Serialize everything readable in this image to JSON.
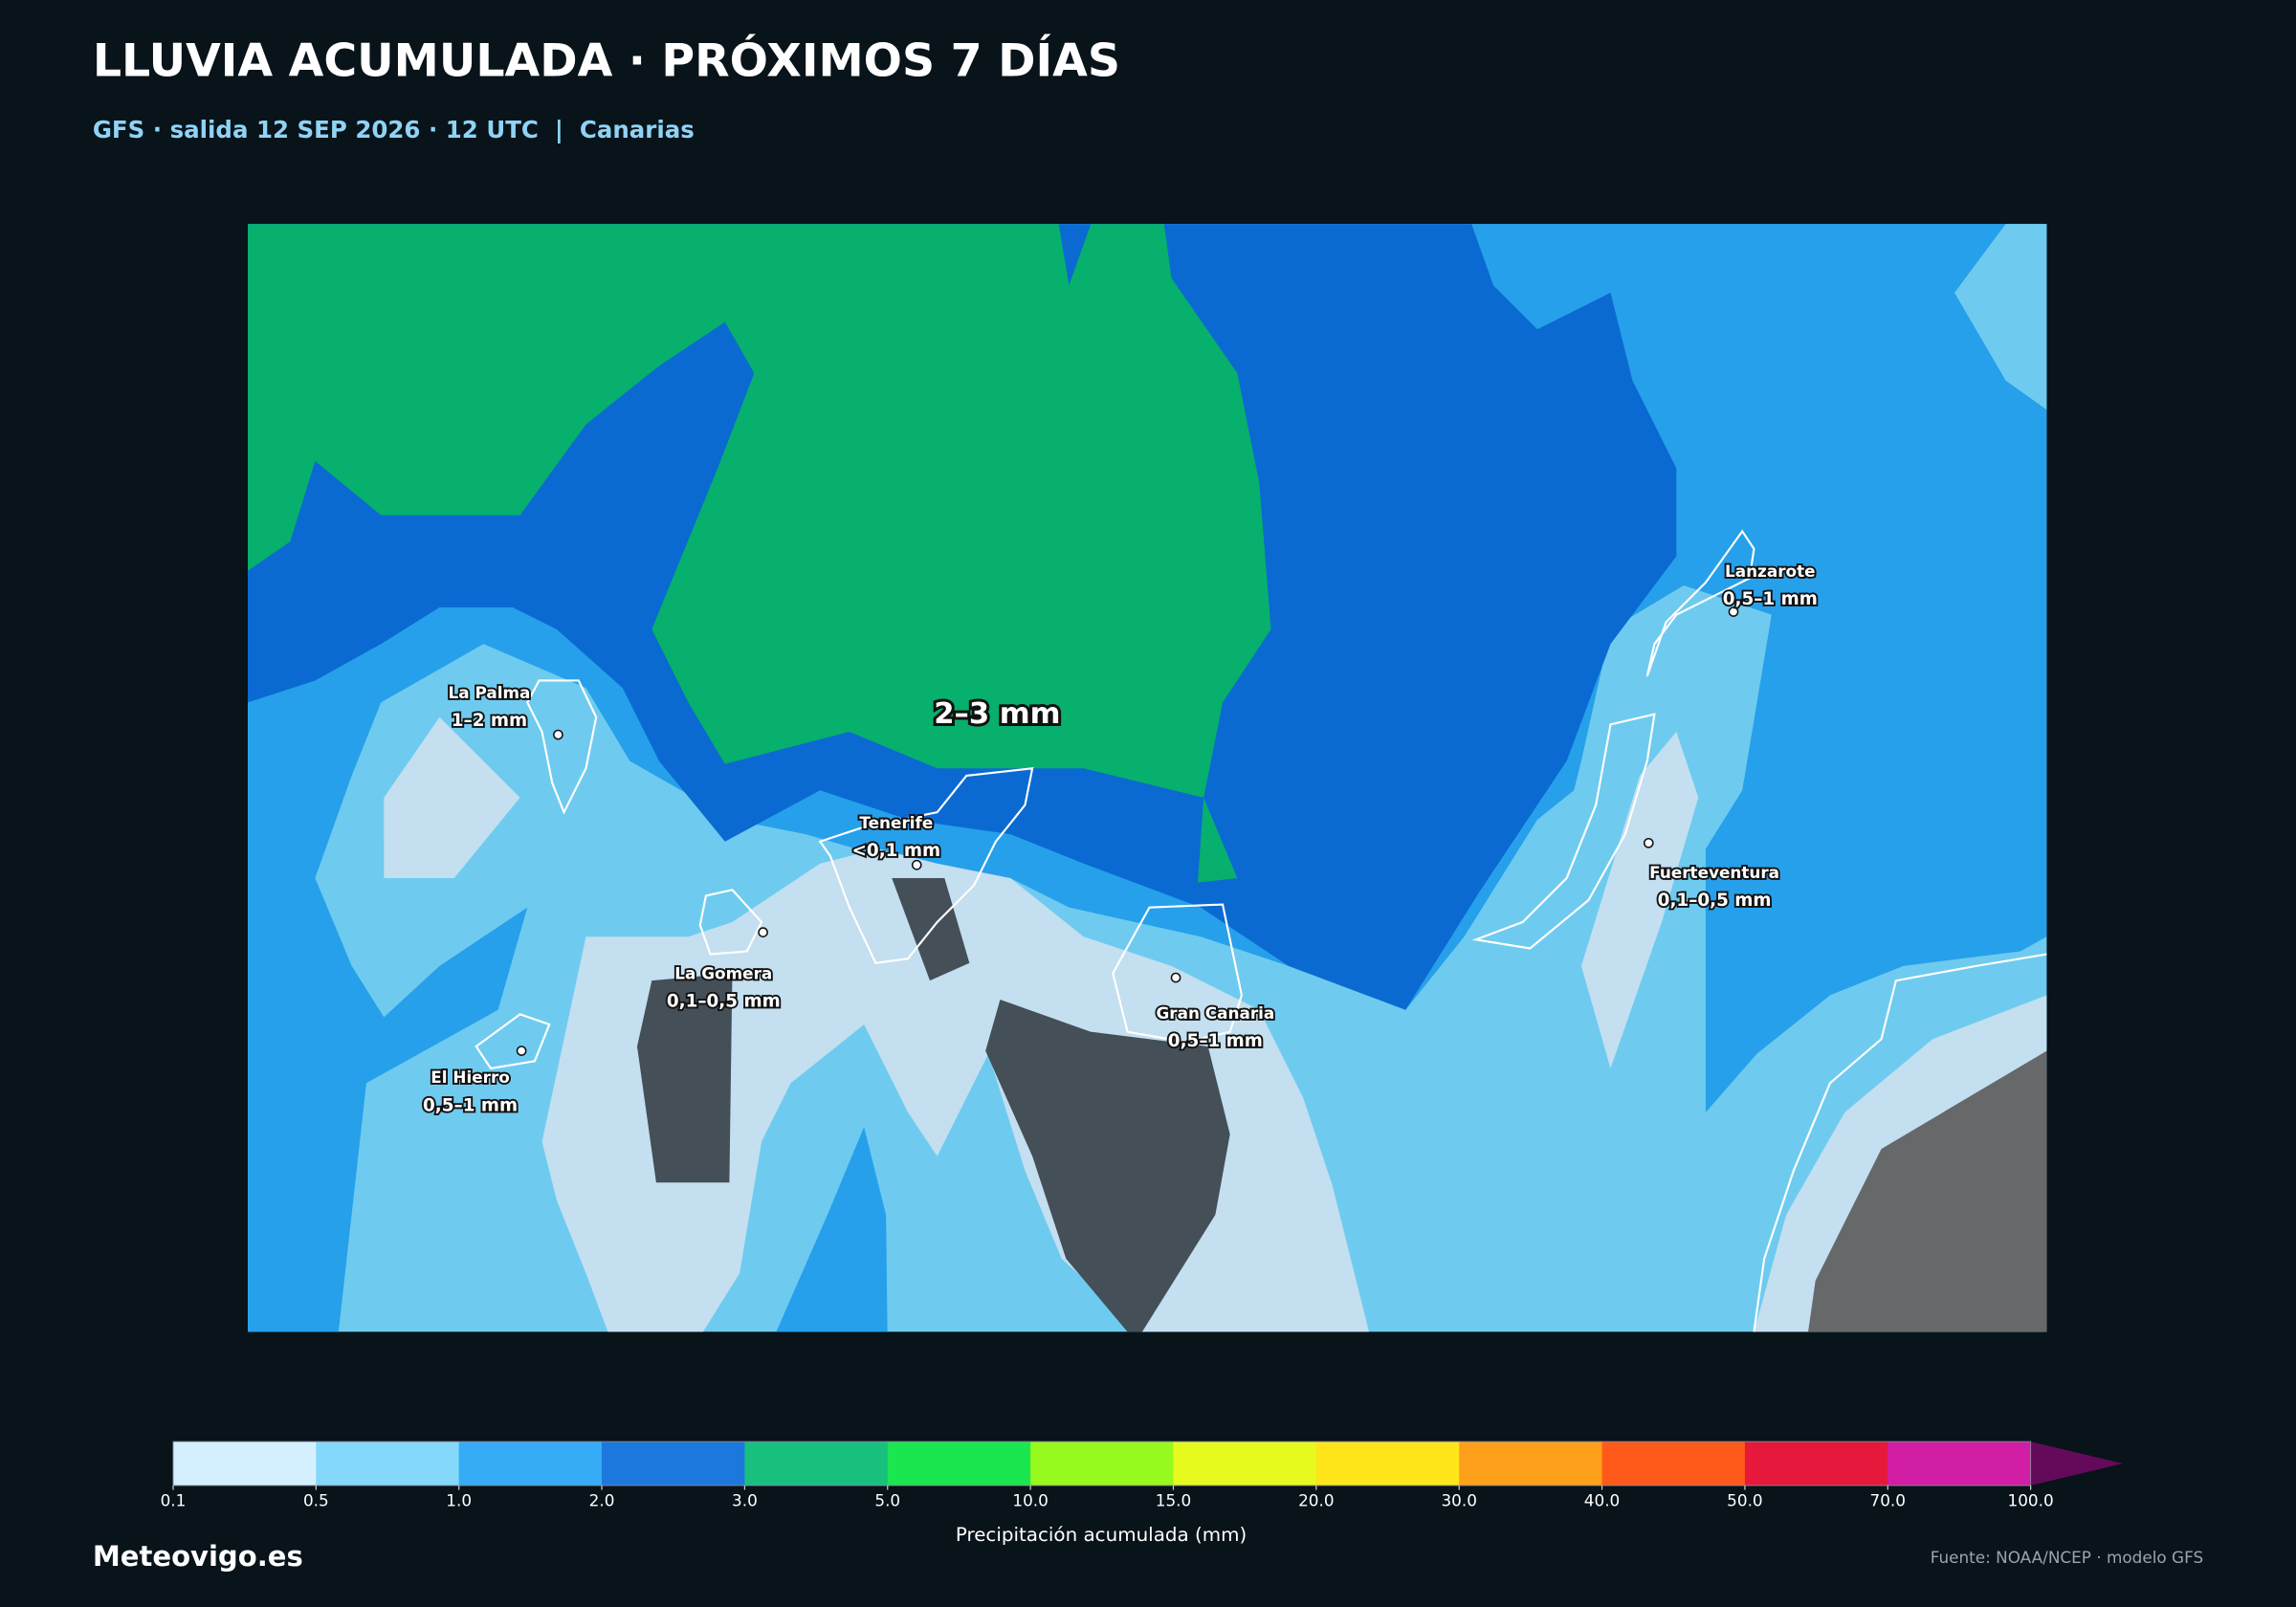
{
  "header": {
    "title": "LLUVIA ACUMULADA · PRÓXIMOS 7 DÍAS",
    "subtitle": "GFS · salida 12 SEP 2026 · 12 UTC  |  Canarias"
  },
  "map": {
    "annotation": "2–3 mm",
    "places": [
      {
        "name": "La Palma",
        "label": "1–2 mm"
      },
      {
        "name": "Tenerife",
        "label": "<0,1 mm"
      },
      {
        "name": "La Gomera",
        "label": "0,1–0,5 mm"
      },
      {
        "name": "El Hierro",
        "label": "0,5–1 mm"
      },
      {
        "name": "Gran Canaria",
        "label": "0,5–1 mm"
      },
      {
        "name": "Lanzarote",
        "label": "0,5–1 mm"
      },
      {
        "name": "Fuerteventura",
        "label": "0,1–0,5 mm"
      }
    ]
  },
  "colorbar": {
    "label": "Precipitación acumulada (mm)",
    "ticks": [
      "0.1",
      "0.5",
      "1.0",
      "2.0",
      "3.0",
      "5.0",
      "10.0",
      "15.0",
      "20.0",
      "30.0",
      "40.0",
      "50.0",
      "70.0",
      "100.0"
    ],
    "colors": [
      "#d4f0ff",
      "#84d8fa",
      "#35acf5",
      "#1c78dc",
      "#18c07e",
      "#1ae650",
      "#96fa1e",
      "#e6fa1e",
      "#ffe61a",
      "#ffa01a",
      "#ff5a1a",
      "#e6193c",
      "#d21ea5"
    ],
    "extend_color": "#640a5a"
  },
  "footer": {
    "brand": "Meteovigo.es",
    "source": "Fuente: NOAA/NCEP · modelo GFS"
  }
}
